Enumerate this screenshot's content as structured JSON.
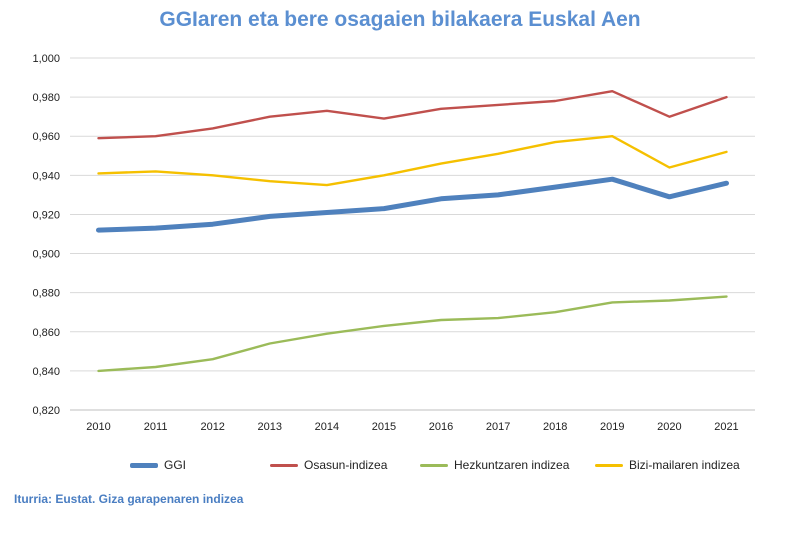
{
  "title": "GGIaren eta bere osagaien bilakaera Euskal Aen",
  "source": "Iturria: Eustat. Giza garapenaren indizea",
  "chart_data": {
    "type": "line",
    "title": "GGIaren eta bere osagaien bilakaera Euskal Aen",
    "xlabel": "",
    "ylabel": "",
    "categories": [
      "2010",
      "2011",
      "2012",
      "2013",
      "2014",
      "2015",
      "2016",
      "2017",
      "2018",
      "2019",
      "2020",
      "2021"
    ],
    "ylim": [
      0.82,
      1.0
    ],
    "yticks": [
      "0,820",
      "0,840",
      "0,860",
      "0,880",
      "0,900",
      "0,920",
      "0,940",
      "0,960",
      "0,980",
      "1,000"
    ],
    "grid": true,
    "legend_position": "bottom",
    "series": [
      {
        "name": "GGI",
        "color": "#4f81bd",
        "width": "thick",
        "values": [
          0.912,
          0.913,
          0.915,
          0.919,
          0.921,
          0.923,
          0.928,
          0.93,
          0.934,
          0.938,
          0.929,
          0.936
        ]
      },
      {
        "name": "Osasun-indizea",
        "color": "#c0504d",
        "width": "normal",
        "values": [
          0.959,
          0.96,
          0.964,
          0.97,
          0.973,
          0.969,
          0.974,
          0.976,
          0.978,
          0.983,
          0.97,
          0.98
        ]
      },
      {
        "name": "Hezkuntzaren indizea",
        "color": "#9bbb59",
        "width": "normal",
        "values": [
          0.84,
          0.842,
          0.846,
          0.854,
          0.859,
          0.863,
          0.866,
          0.867,
          0.87,
          0.875,
          0.876,
          0.878
        ]
      },
      {
        "name": "Bizi-mailaren indizea",
        "color": "#f5c000",
        "width": "normal",
        "values": [
          0.941,
          0.942,
          0.94,
          0.937,
          0.935,
          0.94,
          0.946,
          0.951,
          0.957,
          0.96,
          0.944,
          0.952
        ]
      }
    ]
  }
}
